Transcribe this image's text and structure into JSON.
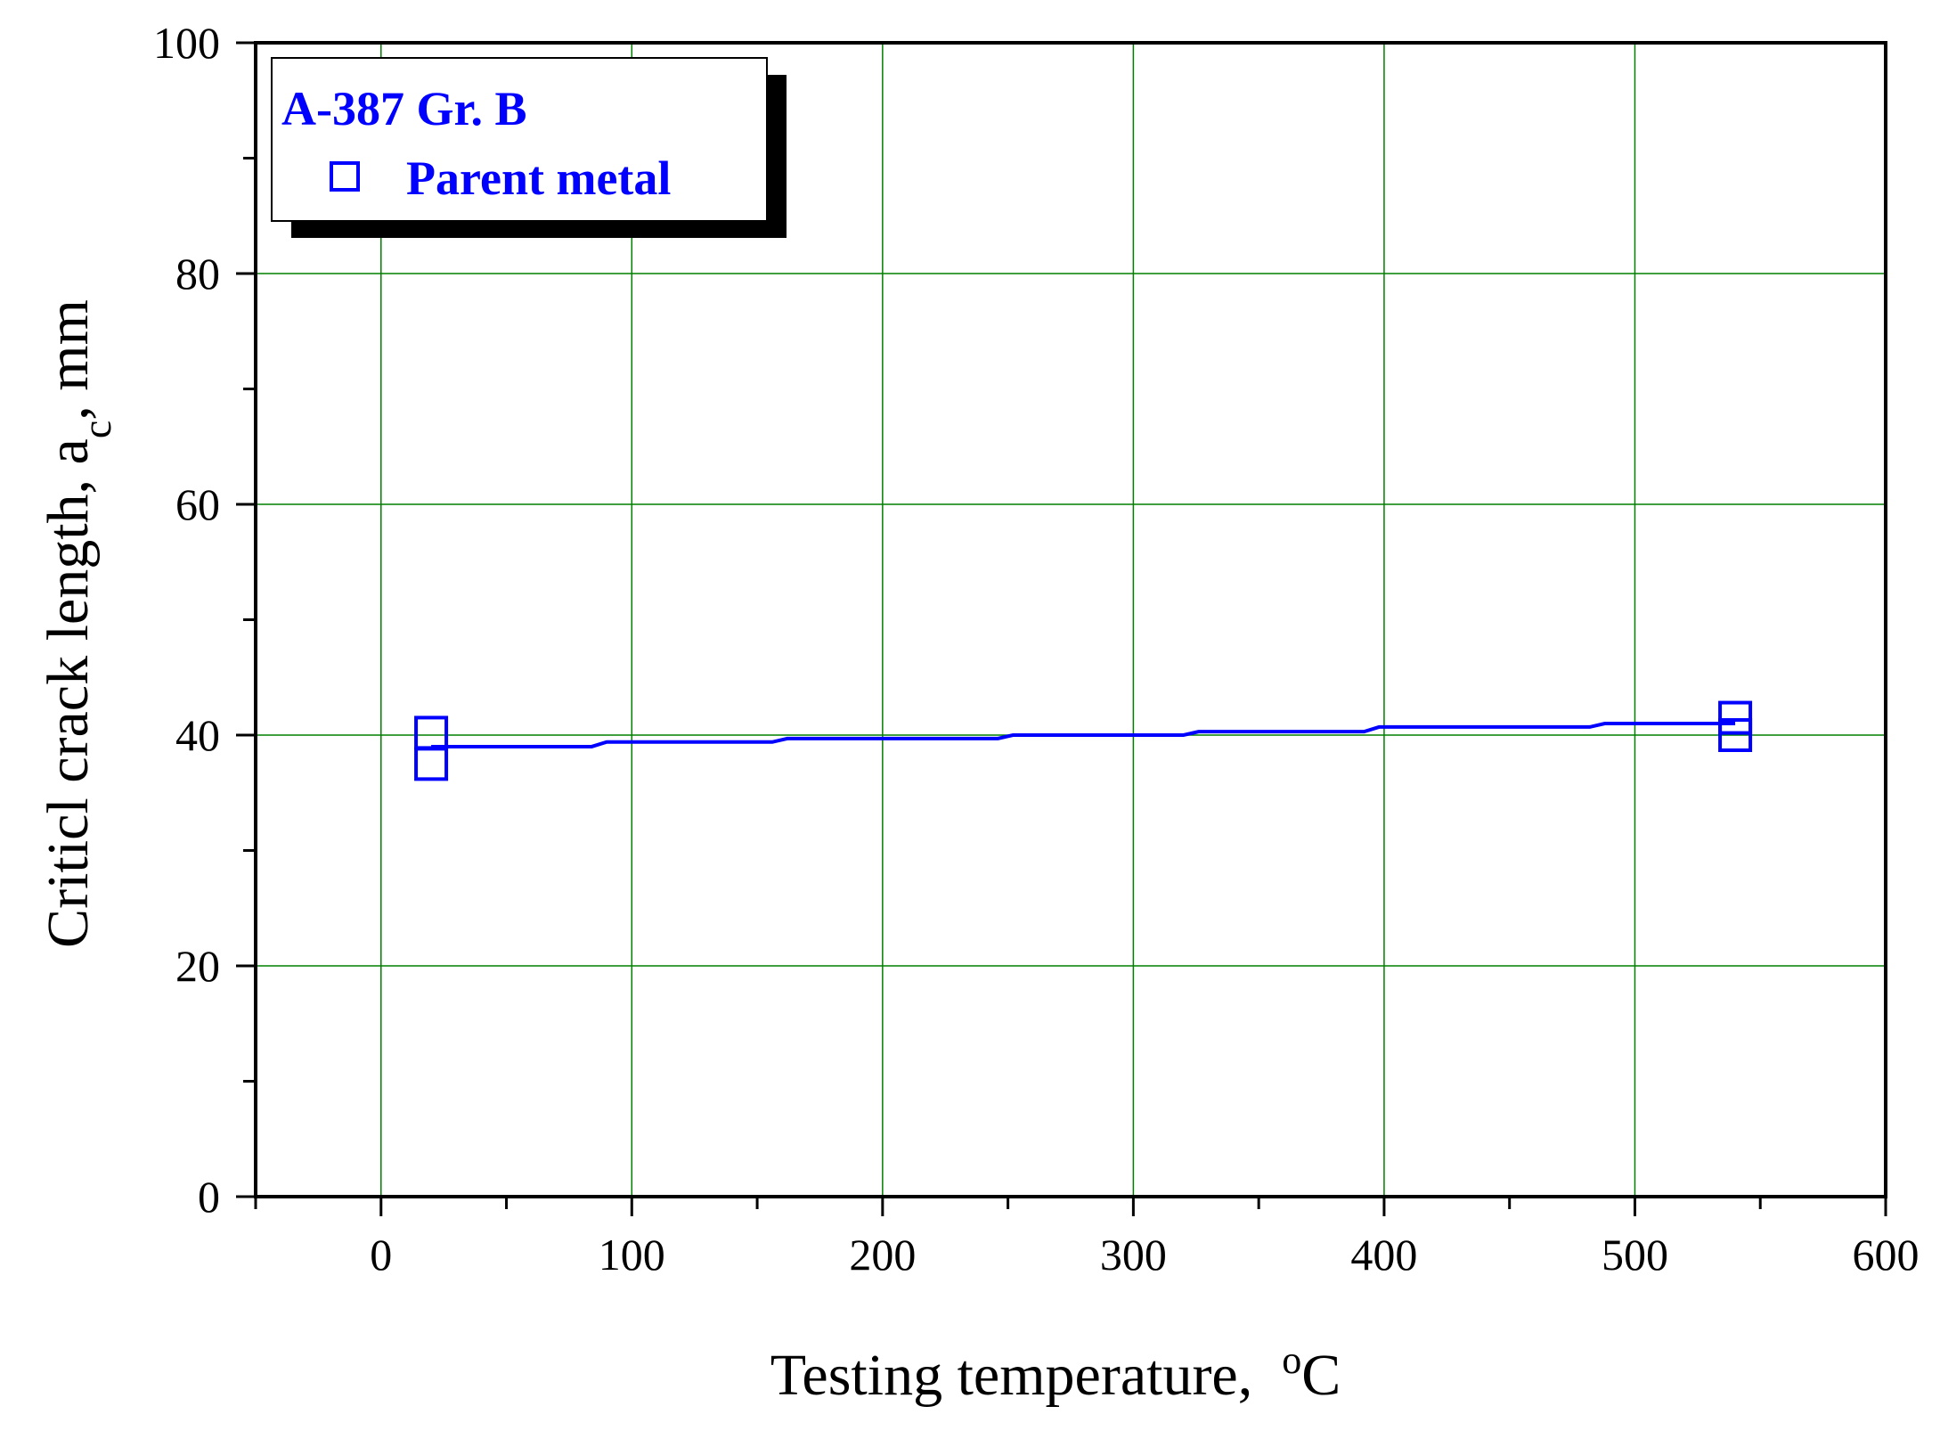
{
  "chart_data": {
    "type": "scatter",
    "xlabel": "Testing temperature,  ",
    "xlabel_unit_sup": "o",
    "xlabel_unit": "C",
    "ylabel": "Criticl crack length, a",
    "ylabel_sub": "c",
    "ylabel_unit": ", mm",
    "xlim": [
      -50,
      600
    ],
    "ylim": [
      0,
      100
    ],
    "x_ticks": [
      0,
      100,
      200,
      300,
      400,
      500,
      600
    ],
    "y_ticks": [
      0,
      20,
      40,
      60,
      80,
      100
    ],
    "x_minor_step": 50,
    "y_minor_step": 10,
    "grid": true,
    "legend_placement": "top-left",
    "legend": {
      "title": "A-387 Gr. B",
      "entries": [
        {
          "label": "Parent metal",
          "marker": "open-square"
        }
      ]
    },
    "series": [
      {
        "name": "Parent metal",
        "marker": "open-square",
        "color": "#0000ff",
        "points": [
          {
            "x": 20,
            "y": 40.2
          },
          {
            "x": 20,
            "y": 37.5
          },
          {
            "x": 540,
            "y": 41.5
          },
          {
            "x": 540,
            "y": 40.0
          }
        ],
        "fit_line": [
          {
            "x": 20,
            "y": 39.0
          },
          {
            "x": 84,
            "y": 39.0
          },
          {
            "x": 90,
            "y": 39.4
          },
          {
            "x": 156,
            "y": 39.4
          },
          {
            "x": 162,
            "y": 39.7
          },
          {
            "x": 246,
            "y": 39.7
          },
          {
            "x": 252,
            "y": 40.0
          },
          {
            "x": 320,
            "y": 40.0
          },
          {
            "x": 326,
            "y": 40.3
          },
          {
            "x": 392,
            "y": 40.3
          },
          {
            "x": 398,
            "y": 40.7
          },
          {
            "x": 482,
            "y": 40.7
          },
          {
            "x": 488,
            "y": 41.0
          },
          {
            "x": 540,
            "y": 41.0
          }
        ]
      }
    ],
    "colors": {
      "axis": "#000000",
      "grid": "#008000",
      "series": "#0000ff"
    }
  }
}
